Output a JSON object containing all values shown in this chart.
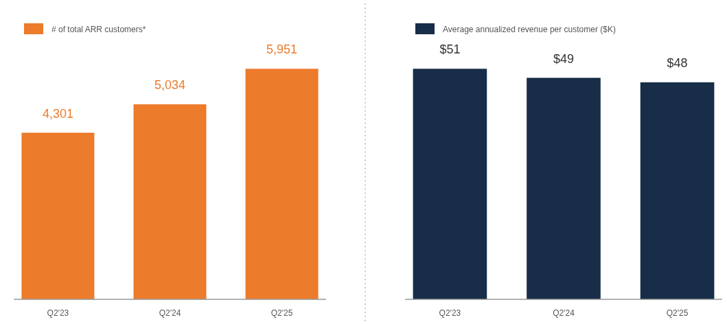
{
  "chart_data": [
    {
      "type": "bar",
      "categories": [
        "Q2'23",
        "Q2'24",
        "Q2'25"
      ],
      "series": [
        {
          "name": "# of total ARR customers*",
          "color": "#ec7b2c",
          "values": [
            4301,
            5034,
            5951
          ],
          "value_labels": [
            "4,301",
            "5,034",
            "5,951"
          ]
        }
      ],
      "tick_labels": "x",
      "legend": "top left",
      "grid": false
    },
    {
      "type": "bar",
      "categories": [
        "Q2'23",
        "Q2'24",
        "Q2'25"
      ],
      "series": [
        {
          "name": "Average annualized revenue per customer ($K)",
          "color": "#172d48",
          "values": [
            51,
            49,
            48
          ],
          "value_labels": [
            "$51",
            "$49",
            "$48"
          ]
        }
      ],
      "tick_labels": "x",
      "legend": "top left",
      "grid": false
    }
  ]
}
